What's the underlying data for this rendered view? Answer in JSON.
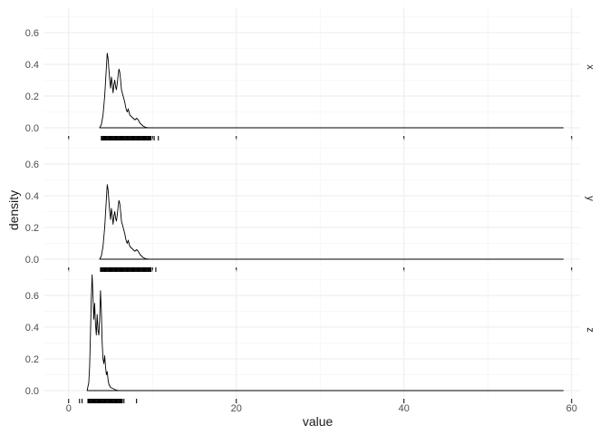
{
  "chart_data": {
    "type": "area",
    "xlabel": "value",
    "ylabel": "density",
    "xlim": [
      -3,
      61
    ],
    "ylim": [
      -0.04,
      0.76
    ],
    "x_ticks": [
      0,
      20,
      40,
      60
    ],
    "y_ticks": [
      0.0,
      0.2,
      0.4,
      0.6
    ],
    "y_tick_labels": [
      "0.0",
      "0.2",
      "0.4",
      "0.6"
    ],
    "grid": true,
    "panels": [
      {
        "facet": "x",
        "x": [
          3.7,
          3.9,
          4.1,
          4.3,
          4.5,
          4.6,
          4.7,
          4.8,
          4.9,
          5.0,
          5.1,
          5.2,
          5.3,
          5.4,
          5.5,
          5.6,
          5.7,
          5.8,
          5.9,
          6.0,
          6.1,
          6.2,
          6.3,
          6.4,
          6.5,
          6.6,
          6.7,
          6.8,
          6.9,
          7.0,
          7.1,
          7.2,
          7.3,
          7.5,
          7.7,
          7.9,
          8.1,
          8.3,
          8.5,
          8.7,
          8.9,
          9.1,
          9.3,
          9.6,
          10.0,
          59.0
        ],
        "y": [
          0.0,
          0.02,
          0.08,
          0.2,
          0.38,
          0.47,
          0.44,
          0.37,
          0.3,
          0.25,
          0.32,
          0.28,
          0.22,
          0.27,
          0.3,
          0.26,
          0.24,
          0.28,
          0.33,
          0.37,
          0.35,
          0.3,
          0.24,
          0.22,
          0.2,
          0.18,
          0.16,
          0.13,
          0.11,
          0.1,
          0.12,
          0.1,
          0.08,
          0.07,
          0.06,
          0.05,
          0.06,
          0.05,
          0.03,
          0.02,
          0.01,
          0.005,
          0.002,
          0.0,
          0.0,
          0.0
        ],
        "rug": [
          3.9,
          4.0,
          4.1,
          4.2,
          4.3,
          4.4,
          4.5,
          4.6,
          4.7,
          4.8,
          4.9,
          5.0,
          5.1,
          5.2,
          5.3,
          5.4,
          5.5,
          5.6,
          5.7,
          5.8,
          5.9,
          6.0,
          6.1,
          6.2,
          6.3,
          6.4,
          6.5,
          6.6,
          6.7,
          6.8,
          6.9,
          7.0,
          7.1,
          7.2,
          7.3,
          7.4,
          7.5,
          7.6,
          7.7,
          7.8,
          7.9,
          8.0,
          8.1,
          8.2,
          8.3,
          8.4,
          8.5,
          8.6,
          8.7,
          8.8,
          8.9,
          9.0,
          9.1,
          9.2,
          9.3,
          9.4,
          9.5,
          9.6,
          9.7,
          9.8,
          10.0,
          10.2,
          10.7
        ]
      },
      {
        "facet": "y",
        "x": [
          3.7,
          3.9,
          4.1,
          4.3,
          4.5,
          4.6,
          4.7,
          4.8,
          4.9,
          5.0,
          5.1,
          5.2,
          5.3,
          5.4,
          5.5,
          5.6,
          5.7,
          5.8,
          5.9,
          6.0,
          6.1,
          6.2,
          6.3,
          6.4,
          6.5,
          6.6,
          6.7,
          6.8,
          6.9,
          7.0,
          7.1,
          7.2,
          7.3,
          7.5,
          7.7,
          7.9,
          8.1,
          8.3,
          8.5,
          8.7,
          8.9,
          9.1,
          9.3,
          9.6,
          10.0,
          59.0
        ],
        "y": [
          0.0,
          0.02,
          0.08,
          0.2,
          0.38,
          0.47,
          0.44,
          0.37,
          0.3,
          0.25,
          0.32,
          0.28,
          0.22,
          0.27,
          0.3,
          0.26,
          0.24,
          0.28,
          0.33,
          0.37,
          0.35,
          0.3,
          0.24,
          0.22,
          0.2,
          0.18,
          0.16,
          0.13,
          0.11,
          0.1,
          0.12,
          0.1,
          0.08,
          0.07,
          0.06,
          0.05,
          0.06,
          0.05,
          0.03,
          0.02,
          0.01,
          0.005,
          0.002,
          0.0,
          0.0,
          0.0
        ],
        "rug": [
          3.8,
          3.9,
          4.0,
          4.1,
          4.2,
          4.3,
          4.4,
          4.5,
          4.6,
          4.7,
          4.8,
          4.9,
          5.0,
          5.1,
          5.2,
          5.3,
          5.4,
          5.5,
          5.6,
          5.7,
          5.8,
          5.9,
          6.0,
          6.1,
          6.2,
          6.3,
          6.4,
          6.5,
          6.6,
          6.7,
          6.8,
          6.9,
          7.0,
          7.1,
          7.2,
          7.3,
          7.4,
          7.5,
          7.6,
          7.7,
          7.8,
          7.9,
          8.0,
          8.1,
          8.2,
          8.3,
          8.4,
          8.5,
          8.6,
          8.7,
          8.8,
          8.9,
          9.0,
          9.1,
          9.2,
          9.3,
          9.4,
          9.5,
          9.6,
          9.7,
          9.8,
          10.0,
          10.4
        ]
      },
      {
        "facet": "z",
        "x": [
          2.2,
          2.4,
          2.5,
          2.6,
          2.7,
          2.8,
          2.9,
          3.0,
          3.1,
          3.2,
          3.3,
          3.4,
          3.5,
          3.6,
          3.7,
          3.8,
          3.9,
          4.0,
          4.1,
          4.2,
          4.3,
          4.4,
          4.5,
          4.6,
          4.7,
          4.8,
          4.9,
          5.0,
          5.2,
          5.4,
          5.6,
          5.8,
          6.0,
          59.0
        ],
        "y": [
          0.0,
          0.05,
          0.15,
          0.35,
          0.58,
          0.73,
          0.6,
          0.45,
          0.55,
          0.42,
          0.35,
          0.48,
          0.38,
          0.35,
          0.45,
          0.63,
          0.5,
          0.3,
          0.2,
          0.17,
          0.22,
          0.15,
          0.1,
          0.12,
          0.07,
          0.04,
          0.03,
          0.02,
          0.015,
          0.01,
          0.005,
          0.002,
          0.0,
          0.0
        ],
        "rug": [
          1.3,
          1.6,
          2.3,
          2.4,
          2.5,
          2.6,
          2.7,
          2.8,
          2.9,
          3.0,
          3.1,
          3.2,
          3.3,
          3.4,
          3.5,
          3.6,
          3.7,
          3.8,
          3.9,
          4.0,
          4.1,
          4.2,
          4.3,
          4.4,
          4.5,
          4.6,
          4.7,
          4.8,
          4.9,
          5.0,
          5.1,
          5.2,
          5.3,
          5.4,
          5.5,
          5.6,
          5.7,
          5.8,
          5.9,
          6.0,
          6.1,
          6.2,
          6.3,
          6.4,
          6.6,
          8.1
        ]
      }
    ]
  }
}
